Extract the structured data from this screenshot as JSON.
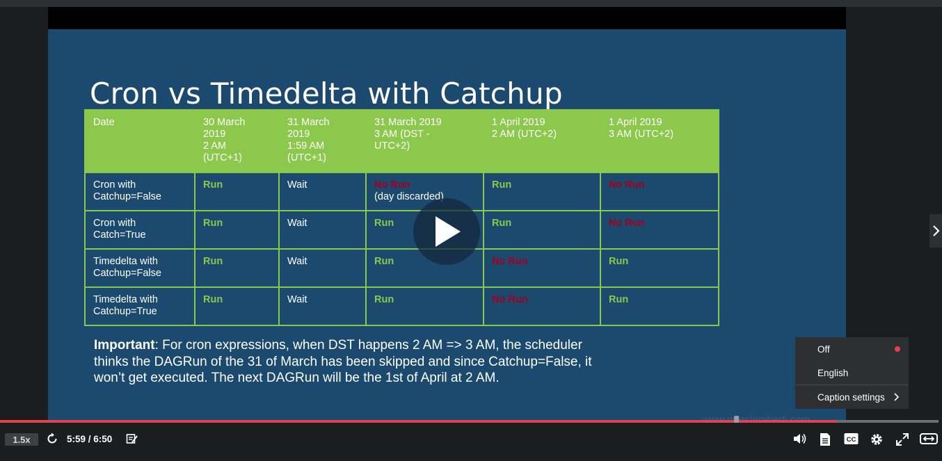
{
  "slide": {
    "title": "Cron vs Timedelta with Catchup",
    "headers": [
      "Date",
      "30 March\n2019\n2 AM\n(UTC+1)",
      "31 March\n2019\n1:59 AM\n(UTC+1)",
      "31 March 2019\n3 AM (DST -\nUTC+2)",
      "1 April 2019\n2 AM (UTC+2)",
      "1 April 2019\n3 AM (UTC+2)"
    ],
    "rows": [
      {
        "label": "Cron with\nCatchup=False",
        "cells": [
          {
            "text": "Run",
            "kind": "run"
          },
          {
            "text": "Wait",
            "kind": "wait"
          },
          {
            "text": "No Run",
            "kind": "norun",
            "extra": "(day discarded)"
          },
          {
            "text": "Run",
            "kind": "run"
          },
          {
            "text": "No Run",
            "kind": "norun"
          }
        ]
      },
      {
        "label": "Cron with\nCatch=True",
        "cells": [
          {
            "text": "Run",
            "kind": "run"
          },
          {
            "text": "Wait",
            "kind": "wait"
          },
          {
            "text": "Run",
            "kind": "run"
          },
          {
            "text": "Run",
            "kind": "run"
          },
          {
            "text": "No Run",
            "kind": "norun"
          }
        ]
      },
      {
        "label": "Timedelta with\nCatchup=False",
        "cells": [
          {
            "text": "Run",
            "kind": "run"
          },
          {
            "text": "Wait",
            "kind": "wait"
          },
          {
            "text": "Run",
            "kind": "run"
          },
          {
            "text": "No Run",
            "kind": "norun"
          },
          {
            "text": "Run",
            "kind": "run"
          }
        ]
      },
      {
        "label": "Timedelta with\nCatchup=True",
        "cells": [
          {
            "text": "Run",
            "kind": "run"
          },
          {
            "text": "Wait",
            "kind": "wait"
          },
          {
            "text": "Run",
            "kind": "run"
          },
          {
            "text": "No Run",
            "kind": "norun"
          },
          {
            "text": "Run",
            "kind": "run"
          }
        ]
      }
    ],
    "note_bold": "Important",
    "note_text": ": For cron expressions, when DST happens 2 AM => 3 AM, the scheduler thinks the DAGRun of the 31 of March has been skipped and since Catchup=False, it won’t get executed. The next DAGRun will be the 1st of April at 2 AM.",
    "watermark": "www.marclamberti.com"
  },
  "caption_menu": {
    "off_label": "Off",
    "english_label": "English",
    "settings_label": "Caption settings",
    "selected": "Off"
  },
  "player": {
    "speed": "1.5x",
    "current_time": "5:59",
    "duration": "6:50",
    "time_display": "5:59 / 6:50",
    "progress_fraction": 0.877
  },
  "colors": {
    "slide_bg": "#1b4a6e",
    "table_green": "#8cc84b",
    "no_run_red": "#a3001f",
    "progress_red": "#e0434f"
  },
  "icons": [
    "play-icon",
    "chevron-right-icon",
    "rewind-icon",
    "transcript-edit-icon",
    "volume-icon",
    "transcript-icon",
    "closed-captions-icon",
    "settings-gear-icon",
    "fullscreen-icon",
    "expand-icon"
  ]
}
